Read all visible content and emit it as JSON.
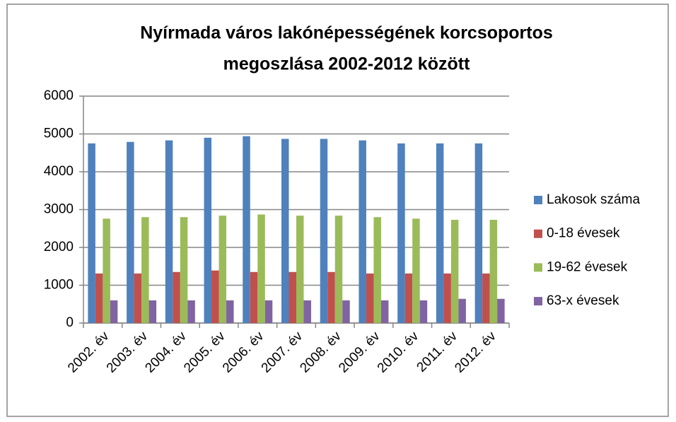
{
  "chart_data": {
    "type": "bar",
    "title": [
      "Nyírmada város lakónépességének korcsoportos",
      "megoszlása 2002-2012 között"
    ],
    "categories": [
      "2002. év",
      "2003. év",
      "2004. év",
      "2005. év",
      "2006. év",
      "2007. év",
      "2008. év",
      "2009. év",
      "2010. év",
      "2011. év",
      "2012. év"
    ],
    "series": [
      {
        "name": "Lakosok száma",
        "color": "#4f81bd",
        "values": [
          4750,
          4790,
          4830,
          4900,
          4940,
          4870,
          4870,
          4830,
          4750,
          4750,
          4750
        ]
      },
      {
        "name": "0-18 évesek",
        "color": "#c0504d",
        "values": [
          1310,
          1310,
          1350,
          1390,
          1350,
          1350,
          1350,
          1310,
          1310,
          1310,
          1310
        ]
      },
      {
        "name": "19-62 évesek",
        "color": "#9bbb59",
        "values": [
          2760,
          2800,
          2800,
          2840,
          2870,
          2840,
          2840,
          2800,
          2760,
          2730,
          2730
        ]
      },
      {
        "name": "63-x évesek",
        "color": "#8064a2",
        "values": [
          600,
          600,
          600,
          600,
          600,
          600,
          600,
          600,
          600,
          640,
          640
        ]
      }
    ],
    "ylim": [
      0,
      6000
    ],
    "yticks": [
      0,
      1000,
      2000,
      3000,
      4000,
      5000,
      6000
    ],
    "grid": true,
    "legend": "right"
  }
}
